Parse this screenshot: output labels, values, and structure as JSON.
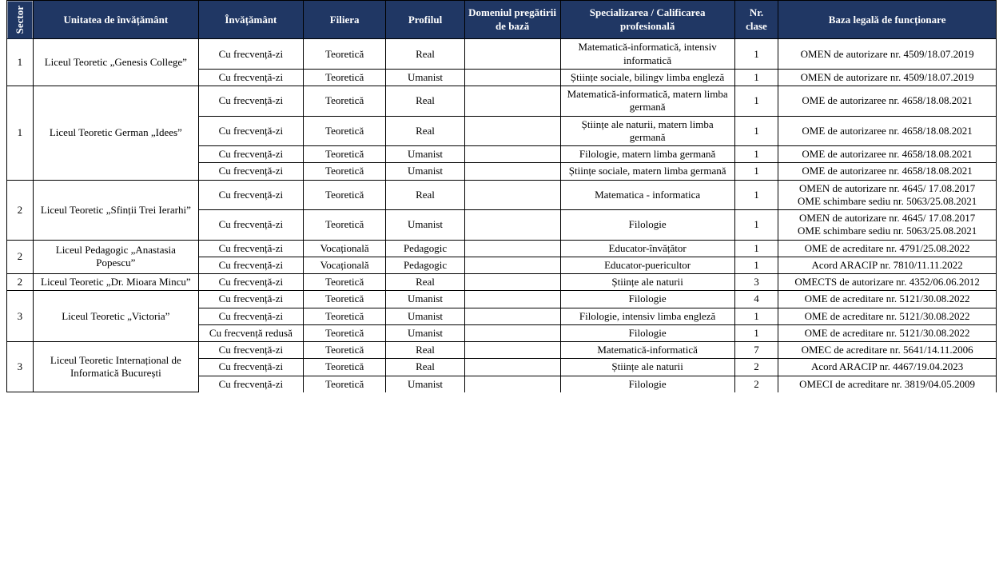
{
  "colors": {
    "header_bg": "#203764",
    "header_fg": "#ffffff",
    "border": "#000000",
    "body_fg": "#000000",
    "body_bg": "#ffffff"
  },
  "typography": {
    "font_family": "Times New Roman",
    "header_fontsize_pt": 10,
    "body_fontsize_pt": 10
  },
  "header": {
    "sector": "Sector",
    "unitate": "Unitatea de învățământ",
    "invatamant": "Învățământ",
    "filiera": "Filiera",
    "profilul": "Profilul",
    "domeniul": "Domeniul pregătirii de bază",
    "specializarea": "Specializarea / Calificarea profesională",
    "nr_clase": "Nr. clase",
    "baza": "Baza legală de funcționare"
  },
  "rows": [
    {
      "sector": "1",
      "unitate": "Liceul Teoretic „Genesis College”",
      "sub": [
        {
          "invatamant": "Cu frecvență-zi",
          "filiera": "Teoretică",
          "profilul": "Real",
          "domeniul": "",
          "specializarea": "Matematică-informatică, intensiv informatică",
          "nr_clase": "1",
          "baza": "OMEN de autorizare nr. 4509/18.07.2019"
        },
        {
          "invatamant": "Cu frecvență-zi",
          "filiera": "Teoretică",
          "profilul": "Umanist",
          "domeniul": "",
          "specializarea": "Științe sociale, bilingv limba engleză",
          "nr_clase": "1",
          "baza": "OMEN de autorizare nr. 4509/18.07.2019"
        }
      ]
    },
    {
      "sector": "1",
      "unitate": "Liceul Teoretic German „Idees”",
      "sub": [
        {
          "invatamant": "Cu frecvență-zi",
          "filiera": "Teoretică",
          "profilul": "Real",
          "domeniul": "",
          "specializarea": "Matematică-informatică, matern limba germană",
          "nr_clase": "1",
          "baza": "OME de autorizaree nr. 4658/18.08.2021"
        },
        {
          "invatamant": "Cu frecvență-zi",
          "filiera": "Teoretică",
          "profilul": "Real",
          "domeniul": "",
          "specializarea": "Științe ale naturii, matern limba germană",
          "nr_clase": "1",
          "baza": "OME de autorizaree nr. 4658/18.08.2021"
        },
        {
          "invatamant": "Cu frecvență-zi",
          "filiera": "Teoretică",
          "profilul": "Umanist",
          "domeniul": "",
          "specializarea": "Filologie, matern limba germană",
          "nr_clase": "1",
          "baza": "OME de autorizaree nr. 4658/18.08.2021"
        },
        {
          "invatamant": "Cu frecvență-zi",
          "filiera": "Teoretică",
          "profilul": "Umanist",
          "domeniul": "",
          "specializarea": "Științe sociale, matern limba germană",
          "nr_clase": "1",
          "baza": "OME de autorizaree nr. 4658/18.08.2021"
        }
      ]
    },
    {
      "sector": "2",
      "unitate": "Liceul Teoretic „Sfinții Trei Ierarhi”",
      "sub": [
        {
          "invatamant": "Cu frecvență-zi",
          "filiera": "Teoretică",
          "profilul": "Real",
          "domeniul": "",
          "specializarea": "Matematica - informatica",
          "nr_clase": "1",
          "baza": "OMEN de autorizare nr. 4645/ 17.08.2017\nOME schimbare sediu nr. 5063/25.08.2021"
        },
        {
          "invatamant": "Cu frecvență-zi",
          "filiera": "Teoretică",
          "profilul": "Umanist",
          "domeniul": "",
          "specializarea": "Filologie",
          "nr_clase": "1",
          "baza": "OMEN de autorizare nr. 4645/ 17.08.2017\nOME schimbare sediu nr. 5063/25.08.2021"
        }
      ]
    },
    {
      "sector": "2",
      "unitate": "Liceul Pedagogic „Anastasia Popescu”",
      "sub": [
        {
          "invatamant": "Cu frecvență-zi",
          "filiera": "Vocațională",
          "profilul": "Pedagogic",
          "domeniul": "",
          "specializarea": "Educator-învățător",
          "nr_clase": "1",
          "baza": "OME de acreditare nr. 4791/25.08.2022"
        },
        {
          "invatamant": "Cu frecvență-zi",
          "filiera": "Vocațională",
          "profilul": "Pedagogic",
          "domeniul": "",
          "specializarea": "Educator-puericultor",
          "nr_clase": "1",
          "baza": "Acord ARACIP nr. 7810/11.11.2022"
        }
      ]
    },
    {
      "sector": "2",
      "unitate": "Liceul Teoretic „Dr. Mioara Mincu”",
      "sub": [
        {
          "invatamant": "Cu frecvență-zi",
          "filiera": "Teoretică",
          "profilul": "Real",
          "domeniul": "",
          "specializarea": "Științe ale naturii",
          "nr_clase": "3",
          "baza": "OMECTS de autorizare nr. 4352/06.06.2012"
        }
      ]
    },
    {
      "sector": "3",
      "unitate": "Liceul Teoretic „Victoria”",
      "sub": [
        {
          "invatamant": "Cu frecvență-zi",
          "filiera": "Teoretică",
          "profilul": "Umanist",
          "domeniul": "",
          "specializarea": "Filologie",
          "nr_clase": "4",
          "baza": "OME de acreditare nr. 5121/30.08.2022"
        },
        {
          "invatamant": "Cu frecvență-zi",
          "filiera": "Teoretică",
          "profilul": "Umanist",
          "domeniul": "",
          "specializarea": "Filologie, intensiv limba engleză",
          "nr_clase": "1",
          "baza": "OME de acreditare nr. 5121/30.08.2022"
        },
        {
          "invatamant": "Cu frecvență redusă",
          "filiera": "Teoretică",
          "profilul": "Umanist",
          "domeniul": "",
          "specializarea": "Filologie",
          "nr_clase": "1",
          "baza": "OME de acreditare nr. 5121/30.08.2022"
        }
      ]
    },
    {
      "sector": "3",
      "unitate": "Liceul  Teoretic Internațional de Informatică București",
      "sub": [
        {
          "invatamant": "Cu frecvență-zi",
          "filiera": "Teoretică",
          "profilul": "Real",
          "domeniul": "",
          "specializarea": "Matematică-informatică",
          "nr_clase": "7",
          "baza": "OMEC de acreditare nr. 5641/14.11.2006"
        },
        {
          "invatamant": "Cu frecvență-zi",
          "filiera": "Teoretică",
          "profilul": "Real",
          "domeniul": "",
          "specializarea": "Științe ale naturii",
          "nr_clase": "2",
          "baza": "Acord ARACIP nr. 4467/19.04.2023"
        },
        {
          "invatamant": "Cu frecvență-zi",
          "filiera": "Teoretică",
          "profilul": "Umanist",
          "domeniul": "",
          "specializarea": "Filologie",
          "nr_clase": "2",
          "baza": "OMECI de acreditare nr. 3819/04.05.2009"
        }
      ]
    }
  ]
}
